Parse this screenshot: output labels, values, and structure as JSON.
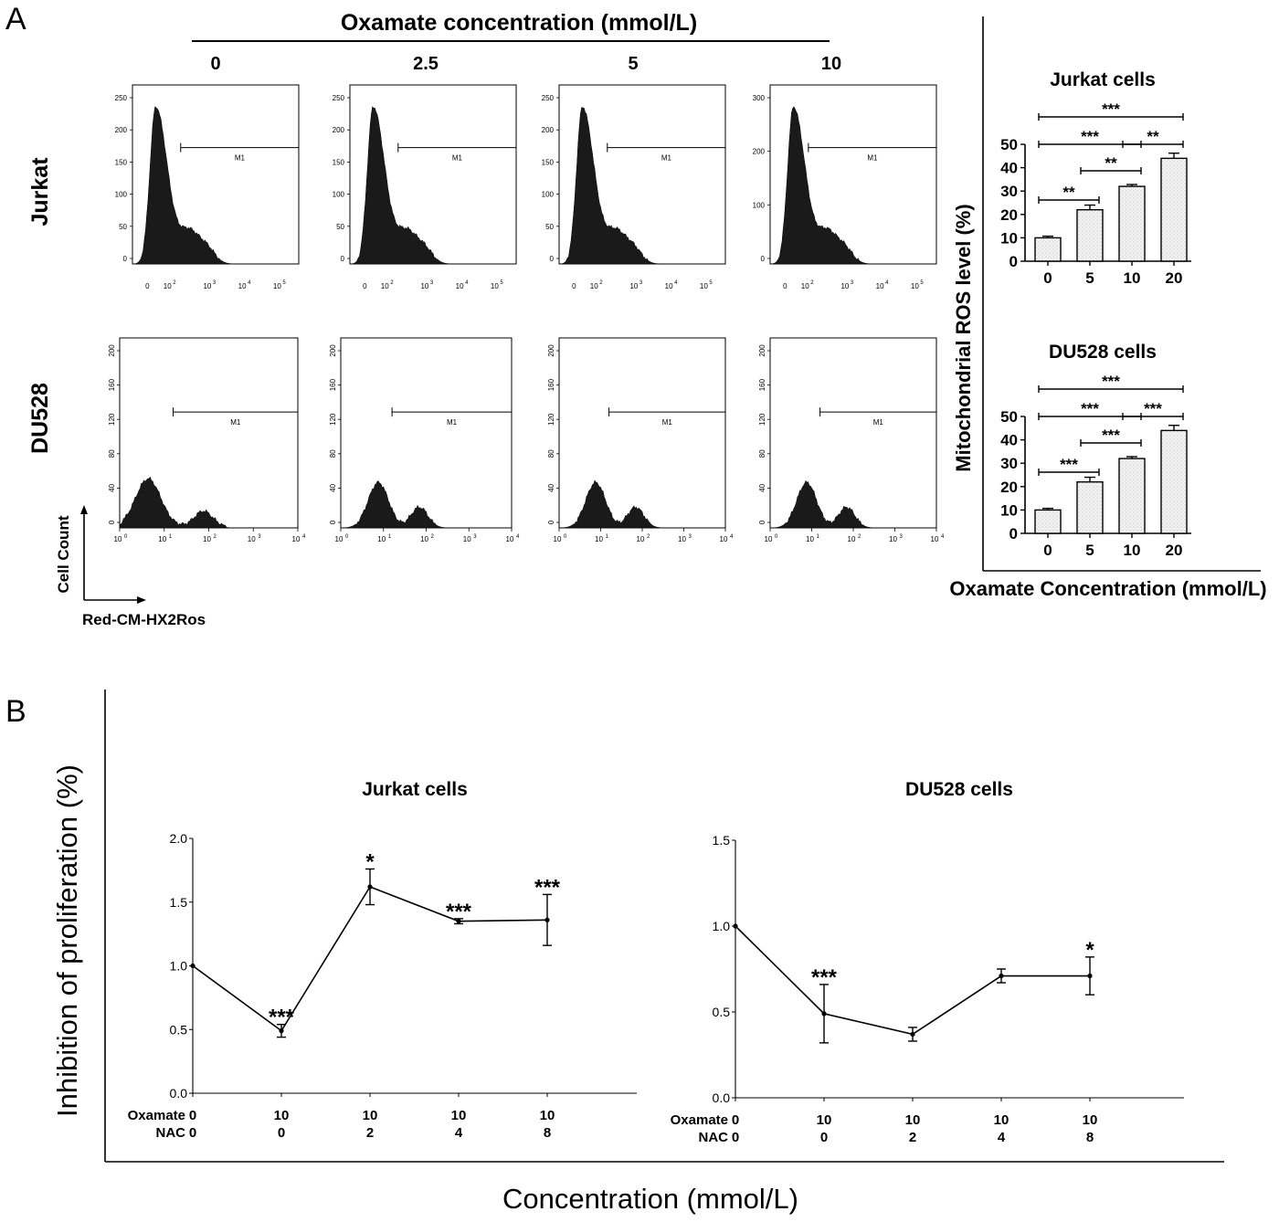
{
  "panel_a_label": "A",
  "panel_b_label": "B",
  "panel_a": {
    "concentration_header": "Oxamate  concentration (mmol/L)",
    "conc_labels": [
      "0",
      "2.5",
      "5",
      "10"
    ],
    "row_labels": [
      "Jurkat",
      "DU528"
    ],
    "gate_label": "M1",
    "y_axis_arrow_label": "Cell Count",
    "x_axis_arrow_label": "Red-CM-HX2Ros",
    "jurkat_yticks": [
      [
        "0",
        "50",
        "100",
        "150",
        "200",
        "250"
      ],
      [
        "0",
        "50",
        "100",
        "150",
        "200",
        "250"
      ],
      [
        "0",
        "50",
        "100",
        "150",
        "200",
        "250"
      ],
      [
        "0",
        "100",
        "200",
        "300"
      ]
    ],
    "du528_yticks": [
      "0",
      "40",
      "80",
      "120",
      "160",
      "200"
    ]
  },
  "ros_charts": {
    "ylabel": "Mitochondrial ROS level (%)",
    "xlabel": "Oxamate Concentration (mmol/L)"
  },
  "panel_b": {
    "ylabel": "Inhibition of proliferation (%)",
    "xlabel": "Concentration (mmol/L)",
    "row_names": [
      "Oxamate",
      "NAC"
    ]
  },
  "chart_data": [
    {
      "type": "bar",
      "title": "Jurkat cells",
      "categories": [
        "0",
        "5",
        "10",
        "20"
      ],
      "values": [
        10,
        22,
        32,
        44
      ],
      "errors": [
        0.7,
        2,
        0.8,
        2.2
      ],
      "ylim": [
        0,
        50
      ],
      "yticks": [
        0,
        10,
        20,
        30,
        40,
        50
      ],
      "significance": [
        {
          "from": 0,
          "to": 3,
          "label": "***"
        },
        {
          "from": 0,
          "to": 2,
          "label": "***"
        },
        {
          "from": 2,
          "to": 3,
          "label": "**"
        },
        {
          "from": 1,
          "to": 2,
          "label": "**"
        },
        {
          "from": 0,
          "to": 1,
          "label": "**"
        }
      ]
    },
    {
      "type": "bar",
      "title": "DU528 cells",
      "categories": [
        "0",
        "5",
        "10",
        "20"
      ],
      "values": [
        10,
        22,
        32,
        44
      ],
      "errors": [
        0.7,
        2,
        0.8,
        2.2
      ],
      "ylim": [
        0,
        50
      ],
      "yticks": [
        0,
        10,
        20,
        30,
        40,
        50
      ],
      "significance": [
        {
          "from": 0,
          "to": 3,
          "label": "***"
        },
        {
          "from": 0,
          "to": 2,
          "label": "***"
        },
        {
          "from": 2,
          "to": 3,
          "label": "***"
        },
        {
          "from": 1,
          "to": 2,
          "label": "***"
        },
        {
          "from": 0,
          "to": 1,
          "label": "***"
        }
      ]
    },
    {
      "type": "line",
      "title": "Jurkat  cells",
      "oxamate": [
        "0",
        "10",
        "10",
        "10",
        "10"
      ],
      "nac": [
        "0",
        "0",
        "2",
        "4",
        "8"
      ],
      "values": [
        1.0,
        0.49,
        1.62,
        1.35,
        1.36
      ],
      "errors": [
        0,
        0.05,
        0.14,
        0.02,
        0.2
      ],
      "stars": [
        "",
        "***",
        "*",
        "***",
        "***"
      ],
      "ylim": [
        0,
        2.0
      ],
      "yticks": [
        "0.0",
        "0.5",
        "1.0",
        "1.5",
        "2.0"
      ]
    },
    {
      "type": "line",
      "title": "DU528 cells",
      "oxamate": [
        "0",
        "10",
        "10",
        "10",
        "10"
      ],
      "nac": [
        "0",
        "0",
        "2",
        "4",
        "8"
      ],
      "values": [
        1.0,
        0.49,
        0.37,
        0.71,
        0.71
      ],
      "errors": [
        0,
        0.17,
        0.04,
        0.04,
        0.11
      ],
      "stars": [
        "",
        "***",
        "",
        "",
        "*"
      ],
      "ylim": [
        0,
        1.5
      ],
      "yticks": [
        "0.0",
        "0.5",
        "1.0",
        "1.5"
      ]
    }
  ]
}
